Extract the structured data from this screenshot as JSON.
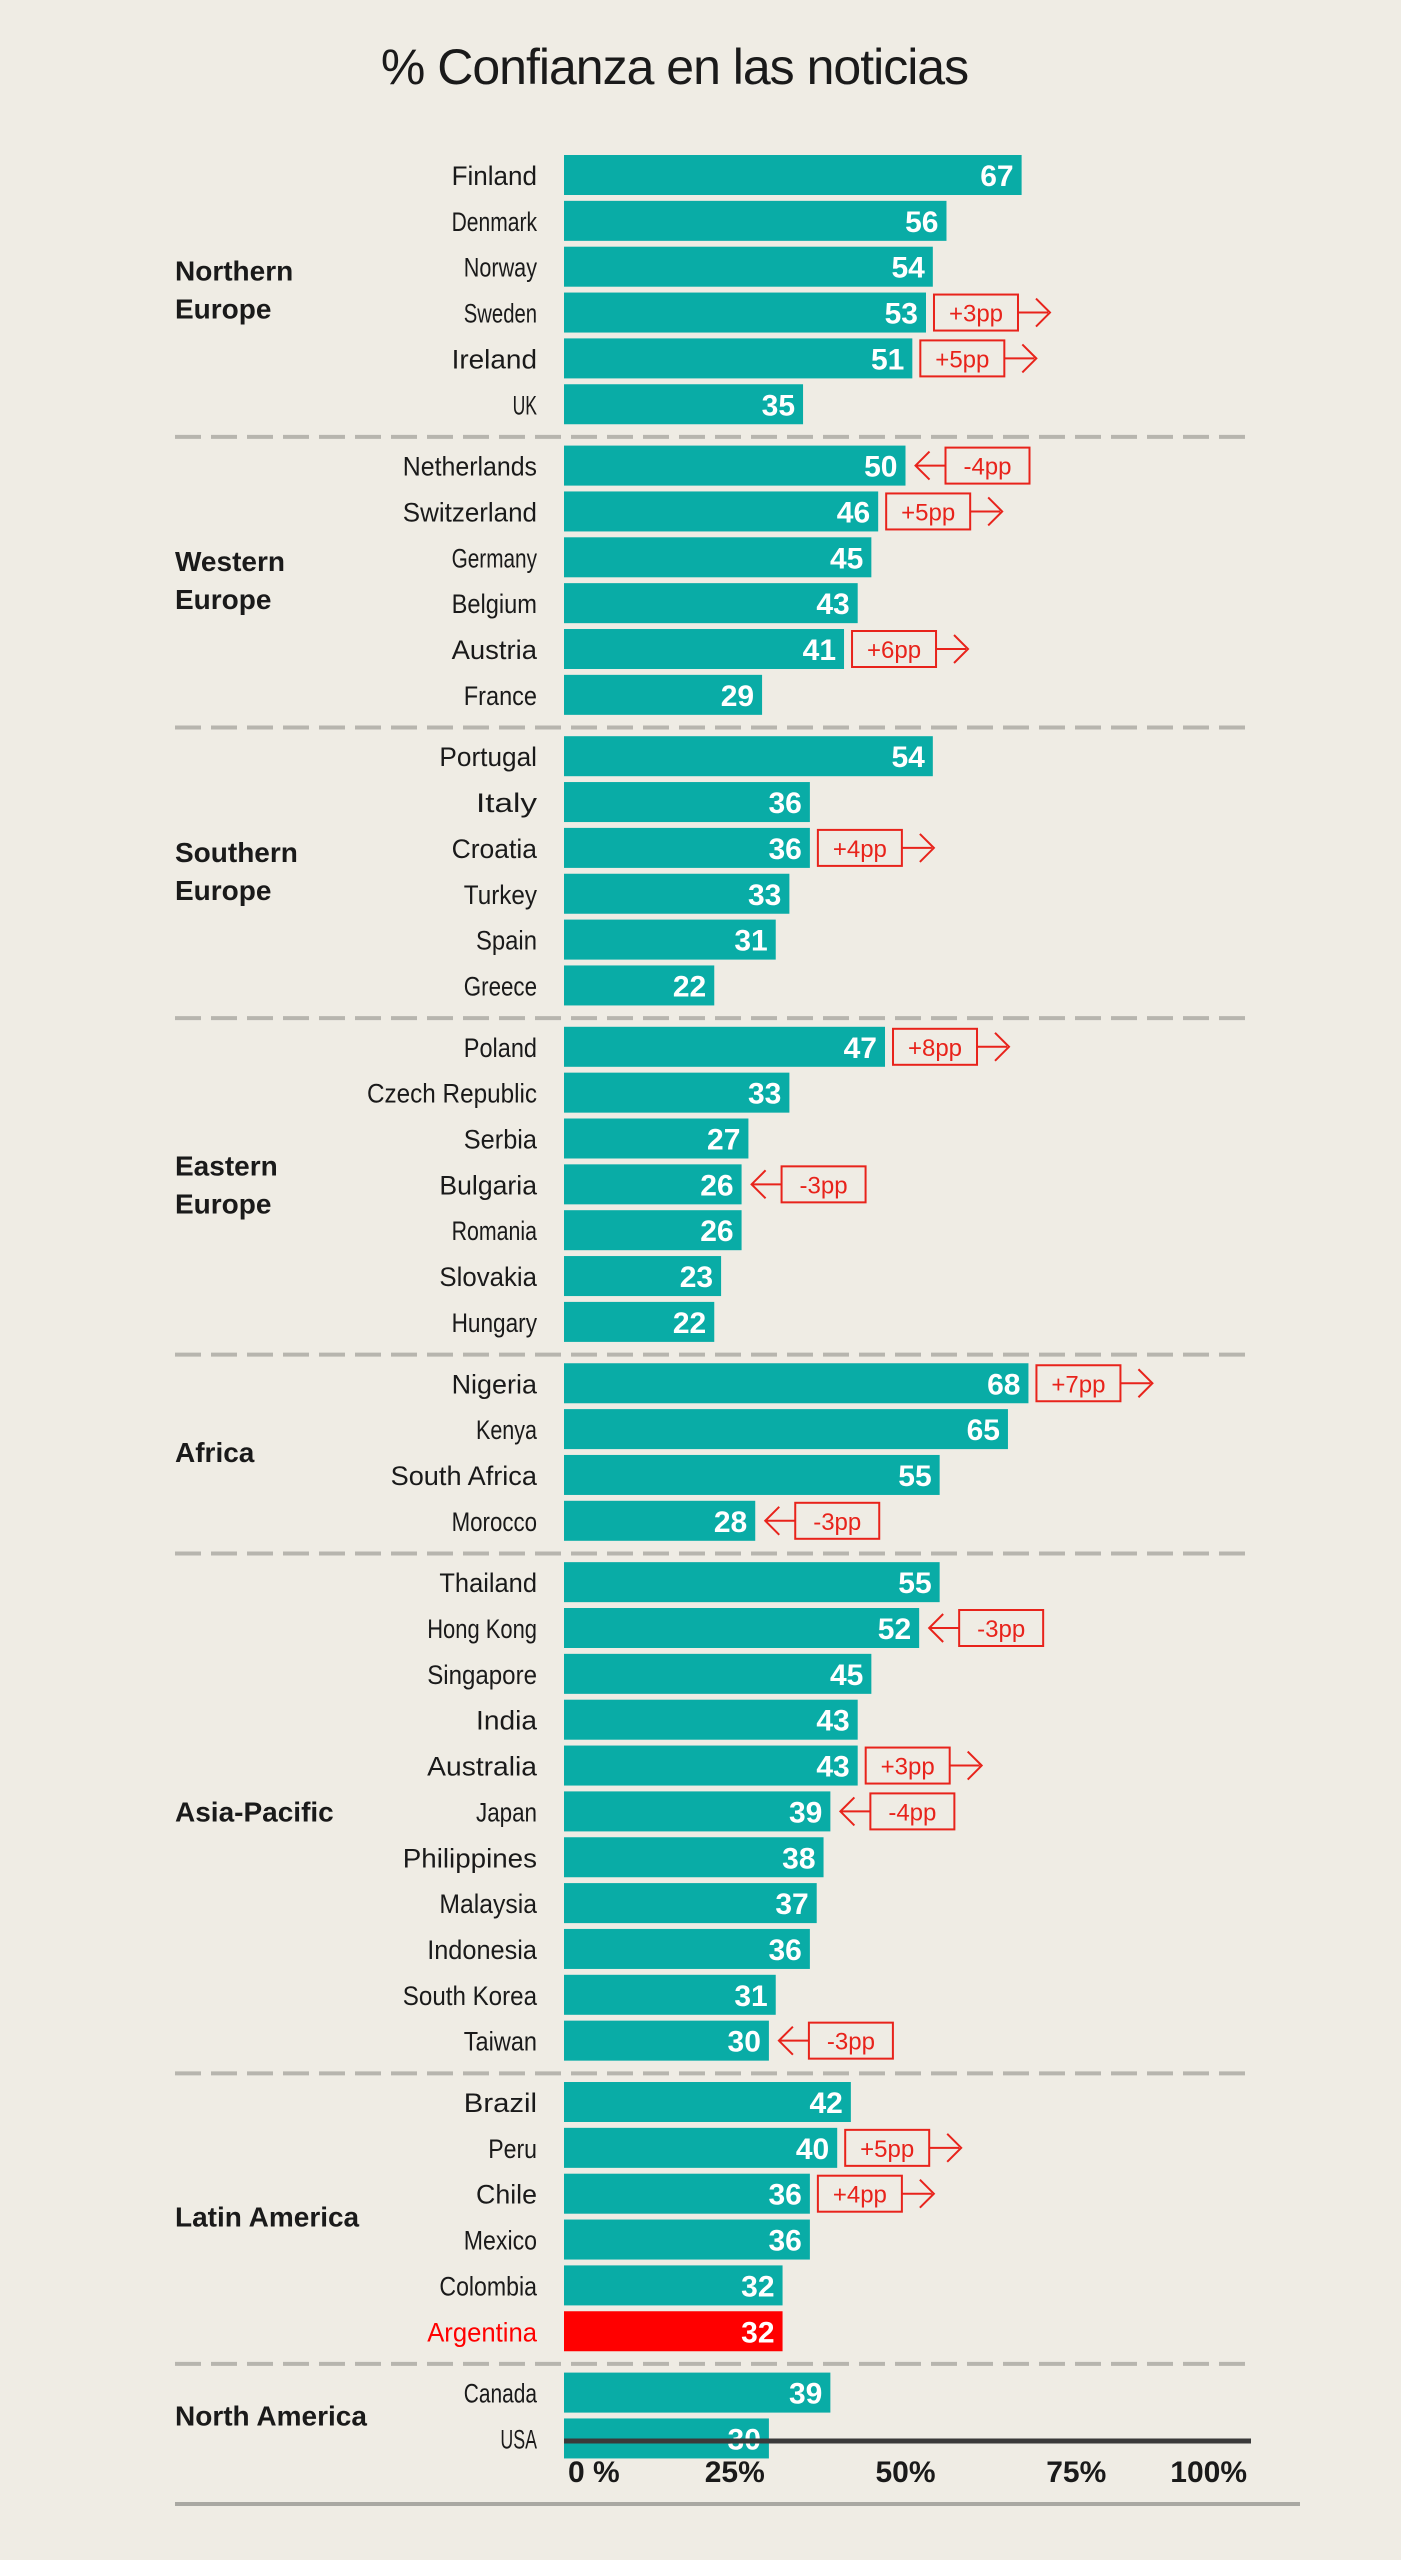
{
  "chart_data": {
    "type": "bar",
    "orientation": "horizontal",
    "title": "% Confianza en las noticias",
    "xlim": [
      0,
      100
    ],
    "x_ticks": [
      "0 %",
      "25%",
      "50%",
      "75%",
      "100%"
    ],
    "colors": {
      "bar": "#09aca6",
      "highlight": "#ff0000",
      "change": "#e8231b",
      "text": "#1a1a1a",
      "background": "#efece4"
    },
    "groups": [
      {
        "name": "Northern\nEurope",
        "countries": [
          {
            "name": "Finland",
            "value": 67
          },
          {
            "name": "Denmark",
            "value": 56
          },
          {
            "name": "Norway",
            "value": 54
          },
          {
            "name": "Sweden",
            "value": 53,
            "change": "+3pp"
          },
          {
            "name": "Ireland",
            "value": 51,
            "change": "+5pp"
          },
          {
            "name": "UK",
            "value": 35
          }
        ]
      },
      {
        "name": "Western\nEurope",
        "countries": [
          {
            "name": "Netherlands",
            "value": 50,
            "change": "-4pp"
          },
          {
            "name": "Switzerland",
            "value": 46,
            "change": "+5pp"
          },
          {
            "name": "Germany",
            "value": 45
          },
          {
            "name": "Belgium",
            "value": 43
          },
          {
            "name": "Austria",
            "value": 41,
            "change": "+6pp"
          },
          {
            "name": "France",
            "value": 29
          }
        ]
      },
      {
        "name": "Southern\nEurope",
        "countries": [
          {
            "name": "Portugal",
            "value": 54
          },
          {
            "name": "Italy",
            "value": 36
          },
          {
            "name": "Croatia",
            "value": 36,
            "change": "+4pp"
          },
          {
            "name": "Turkey",
            "value": 33
          },
          {
            "name": "Spain",
            "value": 31
          },
          {
            "name": "Greece",
            "value": 22
          }
        ]
      },
      {
        "name": "Eastern\nEurope",
        "countries": [
          {
            "name": "Poland",
            "value": 47,
            "change": "+8pp"
          },
          {
            "name": "Czech Republic",
            "value": 33
          },
          {
            "name": "Serbia",
            "value": 27
          },
          {
            "name": "Bulgaria",
            "value": 26,
            "change": "-3pp"
          },
          {
            "name": "Romania",
            "value": 26
          },
          {
            "name": "Slovakia",
            "value": 23
          },
          {
            "name": "Hungary",
            "value": 22
          }
        ]
      },
      {
        "name": "Africa",
        "countries": [
          {
            "name": "Nigeria",
            "value": 68,
            "change": "+7pp"
          },
          {
            "name": "Kenya",
            "value": 65
          },
          {
            "name": "South Africa",
            "value": 55
          },
          {
            "name": "Morocco",
            "value": 28,
            "change": "-3pp"
          }
        ]
      },
      {
        "name": "Asia-Pacific",
        "countries": [
          {
            "name": "Thailand",
            "value": 55
          },
          {
            "name": "Hong Kong",
            "value": 52,
            "change": "-3pp"
          },
          {
            "name": "Singapore",
            "value": 45
          },
          {
            "name": "India",
            "value": 43
          },
          {
            "name": "Australia",
            "value": 43,
            "change": "+3pp"
          },
          {
            "name": "Japan",
            "value": 39,
            "change": "-4pp"
          },
          {
            "name": "Philippines",
            "value": 38
          },
          {
            "name": "Malaysia",
            "value": 37
          },
          {
            "name": "Indonesia",
            "value": 36
          },
          {
            "name": "South Korea",
            "value": 31
          },
          {
            "name": "Taiwan",
            "value": 30,
            "change": "-3pp"
          }
        ]
      },
      {
        "name": "Latin America",
        "countries": [
          {
            "name": "Brazil",
            "value": 42
          },
          {
            "name": "Peru",
            "value": 40,
            "change": "+5pp"
          },
          {
            "name": "Chile",
            "value": 36,
            "change": "+4pp"
          },
          {
            "name": "Mexico",
            "value": 36
          },
          {
            "name": "Colombia",
            "value": 32
          },
          {
            "name": "Argentina",
            "value": 32,
            "highlight": true
          }
        ]
      },
      {
        "name": "North America",
        "countries": [
          {
            "name": "Canada",
            "value": 39
          },
          {
            "name": "USA",
            "value": 30
          }
        ]
      }
    ]
  }
}
